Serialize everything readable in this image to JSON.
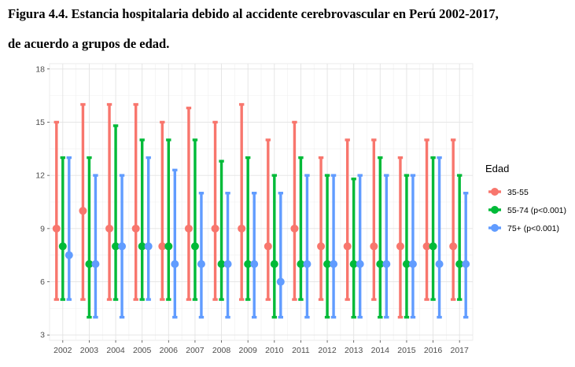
{
  "figure": {
    "title_line1": "Figura 4.4. Estancia hospitalaria debido al accidente cerebrovascular en Perú 2002-2017,",
    "title_line2": "de acuerdo a grupos de edad."
  },
  "chart_data": {
    "type": "errorbar-point",
    "title": "Figura 4.4. Estancia hospitalaria debido al accidente cerebrovascular en Perú 2002-2017, de acuerdo a grupos de edad.",
    "xlabel": "",
    "ylabel": "",
    "ylim": [
      2.7,
      18.3
    ],
    "yticks": [
      3,
      6,
      9,
      12,
      15,
      18
    ],
    "grid": true,
    "legend_position": "right",
    "legend_title": "Edad",
    "categories": [
      "2002",
      "2003",
      "2004",
      "2005",
      "2006",
      "2007",
      "2008",
      "2009",
      "2010",
      "2011",
      "2012",
      "2013",
      "2014",
      "2015",
      "2016",
      "2017"
    ],
    "series": [
      {
        "name": "35-55",
        "color": "#F8766D",
        "median": [
          9,
          10,
          9,
          9,
          8,
          9,
          9,
          9,
          8,
          9,
          8,
          8,
          8,
          8,
          8,
          8
        ],
        "low": [
          5,
          5,
          5,
          5,
          5,
          5,
          5,
          5,
          5,
          5,
          5,
          5,
          5,
          4,
          5,
          5
        ],
        "high": [
          15,
          16,
          16,
          16,
          15,
          15.8,
          15,
          16,
          14,
          15,
          13,
          14,
          14,
          13,
          14,
          14
        ]
      },
      {
        "name": "55-74 (p<0.001)",
        "color": "#00BA38",
        "median": [
          8,
          7,
          8,
          8,
          8,
          8,
          7,
          7,
          7,
          7,
          7,
          7,
          7,
          7,
          8,
          7
        ],
        "low": [
          5,
          4,
          5,
          5,
          5,
          5,
          5,
          5,
          4,
          5,
          4,
          4,
          4,
          4,
          5,
          5
        ],
        "high": [
          13,
          13,
          14.8,
          14,
          14,
          14,
          12.8,
          13,
          12,
          13,
          12,
          11.8,
          13,
          12,
          13,
          12
        ]
      },
      {
        "name": "75+ (p<0.001)",
        "color": "#619CFF",
        "median": [
          7.5,
          7,
          8,
          8,
          7,
          7,
          7,
          7,
          6,
          7,
          7,
          7,
          7,
          7,
          7,
          7
        ],
        "low": [
          5,
          4,
          4,
          5,
          4,
          4,
          4,
          4,
          4,
          4,
          4,
          4,
          4,
          4,
          4,
          4
        ],
        "high": [
          13,
          12,
          12,
          13,
          12.3,
          11,
          11,
          11,
          11,
          12,
          12,
          12,
          12,
          12,
          13,
          11
        ]
      }
    ]
  }
}
